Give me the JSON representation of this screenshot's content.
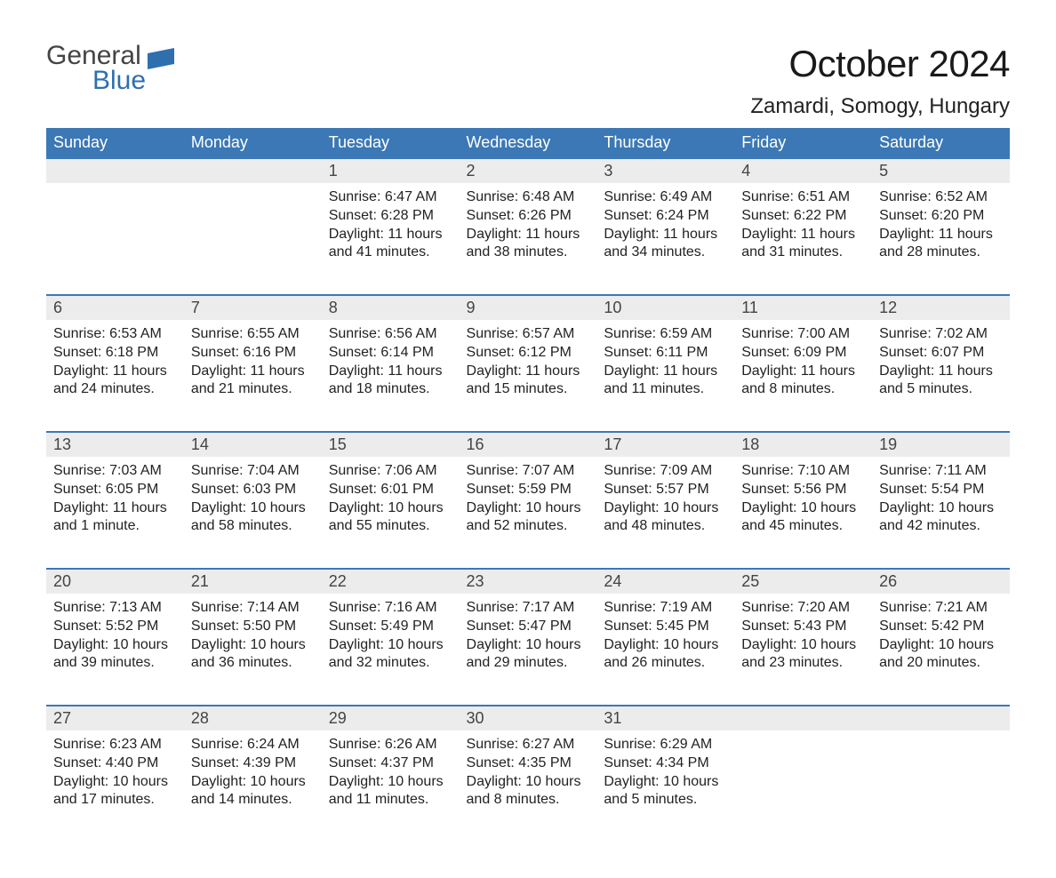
{
  "logo": {
    "word1": "General",
    "word2": "Blue",
    "flag_color": "#2f6fae"
  },
  "title": "October 2024",
  "location": "Zamardi, Somogy, Hungary",
  "colors": {
    "header_bg": "#3b78b5",
    "header_text": "#ffffff",
    "daynum_bg": "#ececec",
    "row_divider": "#3b78b5",
    "body_text": "#222222",
    "page_bg": "#ffffff"
  },
  "weekdays": [
    "Sunday",
    "Monday",
    "Tuesday",
    "Wednesday",
    "Thursday",
    "Friday",
    "Saturday"
  ],
  "weeks": [
    [
      null,
      null,
      {
        "n": "1",
        "sunrise": "6:47 AM",
        "sunset": "6:28 PM",
        "daylight": "11 hours and 41 minutes."
      },
      {
        "n": "2",
        "sunrise": "6:48 AM",
        "sunset": "6:26 PM",
        "daylight": "11 hours and 38 minutes."
      },
      {
        "n": "3",
        "sunrise": "6:49 AM",
        "sunset": "6:24 PM",
        "daylight": "11 hours and 34 minutes."
      },
      {
        "n": "4",
        "sunrise": "6:51 AM",
        "sunset": "6:22 PM",
        "daylight": "11 hours and 31 minutes."
      },
      {
        "n": "5",
        "sunrise": "6:52 AM",
        "sunset": "6:20 PM",
        "daylight": "11 hours and 28 minutes."
      }
    ],
    [
      {
        "n": "6",
        "sunrise": "6:53 AM",
        "sunset": "6:18 PM",
        "daylight": "11 hours and 24 minutes."
      },
      {
        "n": "7",
        "sunrise": "6:55 AM",
        "sunset": "6:16 PM",
        "daylight": "11 hours and 21 minutes."
      },
      {
        "n": "8",
        "sunrise": "6:56 AM",
        "sunset": "6:14 PM",
        "daylight": "11 hours and 18 minutes."
      },
      {
        "n": "9",
        "sunrise": "6:57 AM",
        "sunset": "6:12 PM",
        "daylight": "11 hours and 15 minutes."
      },
      {
        "n": "10",
        "sunrise": "6:59 AM",
        "sunset": "6:11 PM",
        "daylight": "11 hours and 11 minutes."
      },
      {
        "n": "11",
        "sunrise": "7:00 AM",
        "sunset": "6:09 PM",
        "daylight": "11 hours and 8 minutes."
      },
      {
        "n": "12",
        "sunrise": "7:02 AM",
        "sunset": "6:07 PM",
        "daylight": "11 hours and 5 minutes."
      }
    ],
    [
      {
        "n": "13",
        "sunrise": "7:03 AM",
        "sunset": "6:05 PM",
        "daylight": "11 hours and 1 minute."
      },
      {
        "n": "14",
        "sunrise": "7:04 AM",
        "sunset": "6:03 PM",
        "daylight": "10 hours and 58 minutes."
      },
      {
        "n": "15",
        "sunrise": "7:06 AM",
        "sunset": "6:01 PM",
        "daylight": "10 hours and 55 minutes."
      },
      {
        "n": "16",
        "sunrise": "7:07 AM",
        "sunset": "5:59 PM",
        "daylight": "10 hours and 52 minutes."
      },
      {
        "n": "17",
        "sunrise": "7:09 AM",
        "sunset": "5:57 PM",
        "daylight": "10 hours and 48 minutes."
      },
      {
        "n": "18",
        "sunrise": "7:10 AM",
        "sunset": "5:56 PM",
        "daylight": "10 hours and 45 minutes."
      },
      {
        "n": "19",
        "sunrise": "7:11 AM",
        "sunset": "5:54 PM",
        "daylight": "10 hours and 42 minutes."
      }
    ],
    [
      {
        "n": "20",
        "sunrise": "7:13 AM",
        "sunset": "5:52 PM",
        "daylight": "10 hours and 39 minutes."
      },
      {
        "n": "21",
        "sunrise": "7:14 AM",
        "sunset": "5:50 PM",
        "daylight": "10 hours and 36 minutes."
      },
      {
        "n": "22",
        "sunrise": "7:16 AM",
        "sunset": "5:49 PM",
        "daylight": "10 hours and 32 minutes."
      },
      {
        "n": "23",
        "sunrise": "7:17 AM",
        "sunset": "5:47 PM",
        "daylight": "10 hours and 29 minutes."
      },
      {
        "n": "24",
        "sunrise": "7:19 AM",
        "sunset": "5:45 PM",
        "daylight": "10 hours and 26 minutes."
      },
      {
        "n": "25",
        "sunrise": "7:20 AM",
        "sunset": "5:43 PM",
        "daylight": "10 hours and 23 minutes."
      },
      {
        "n": "26",
        "sunrise": "7:21 AM",
        "sunset": "5:42 PM",
        "daylight": "10 hours and 20 minutes."
      }
    ],
    [
      {
        "n": "27",
        "sunrise": "6:23 AM",
        "sunset": "4:40 PM",
        "daylight": "10 hours and 17 minutes."
      },
      {
        "n": "28",
        "sunrise": "6:24 AM",
        "sunset": "4:39 PM",
        "daylight": "10 hours and 14 minutes."
      },
      {
        "n": "29",
        "sunrise": "6:26 AM",
        "sunset": "4:37 PM",
        "daylight": "10 hours and 11 minutes."
      },
      {
        "n": "30",
        "sunrise": "6:27 AM",
        "sunset": "4:35 PM",
        "daylight": "10 hours and 8 minutes."
      },
      {
        "n": "31",
        "sunrise": "6:29 AM",
        "sunset": "4:34 PM",
        "daylight": "10 hours and 5 minutes."
      },
      null,
      null
    ]
  ],
  "labels": {
    "sunrise": "Sunrise:",
    "sunset": "Sunset:",
    "daylight": "Daylight:"
  }
}
